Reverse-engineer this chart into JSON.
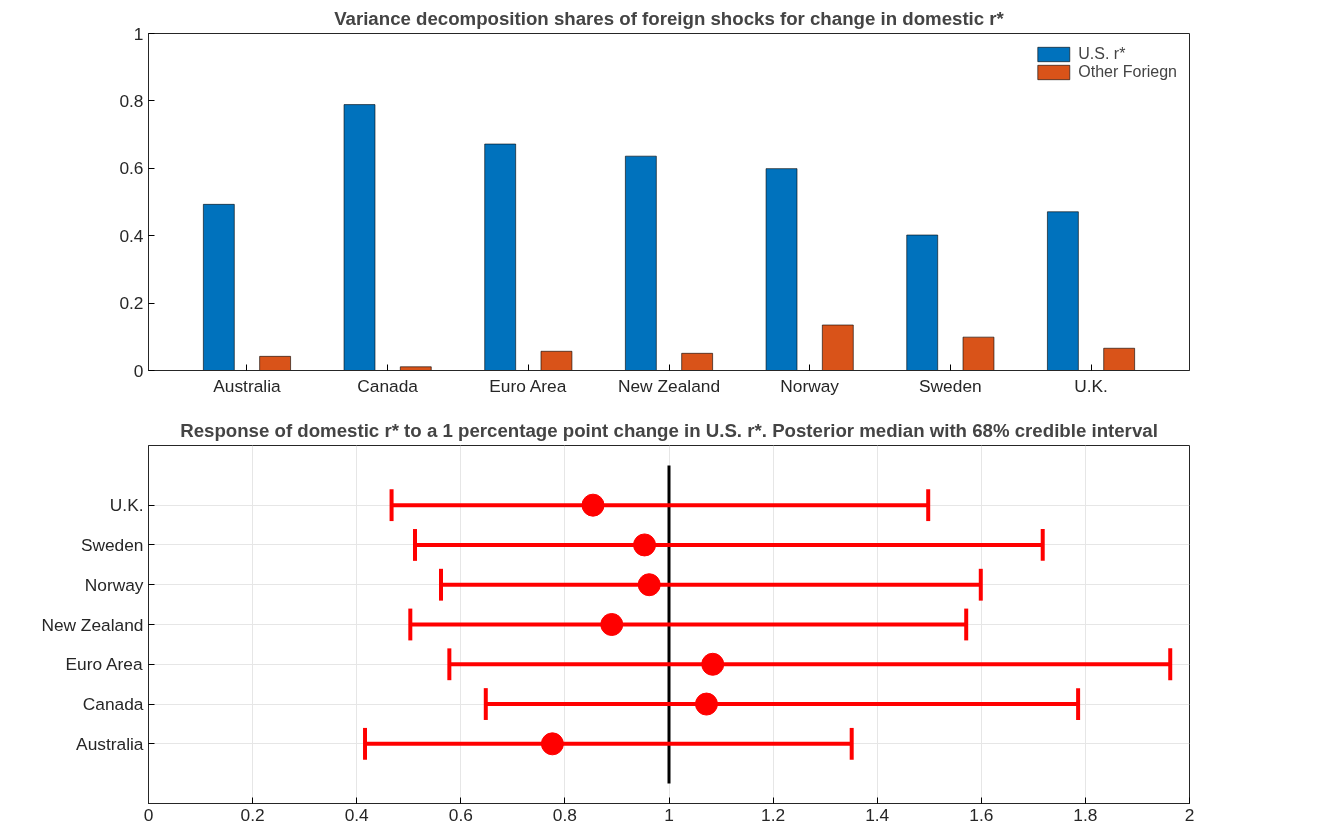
{
  "chart_data": [
    {
      "type": "bar",
      "title": "Variance decomposition shares of foreign shocks for change in domestic r*",
      "categories": [
        "Australia",
        "Canada",
        "Euro Area",
        "New Zealand",
        "Norway",
        "Sweden",
        "U.K."
      ],
      "series": [
        {
          "name": "U.S. r*",
          "color": "#0072bd",
          "values": [
            0.493,
            0.789,
            0.672,
            0.636,
            0.599,
            0.402,
            0.471
          ]
        },
        {
          "name": "Other Foriegn",
          "color": "#d95319",
          "values": [
            0.042,
            0.011,
            0.057,
            0.051,
            0.135,
            0.099,
            0.066
          ]
        }
      ],
      "ylim": [
        0,
        1
      ],
      "yticks": [
        0,
        0.2,
        0.4,
        0.6,
        0.8,
        1
      ],
      "grid": false,
      "legend": "top right"
    },
    {
      "type": "scatter",
      "orientation": "horizontal",
      "title": "Response of domestic r* to a 1 percentage point change in U.S. r*. Posterior median with 68% credible interval",
      "categories": [
        "U.K.",
        "Sweden",
        "Norway",
        "New Zealand",
        "Euro Area",
        "Canada",
        "Australia"
      ],
      "series": [
        {
          "color": "#ff0000",
          "values": [
            0.854,
            0.953,
            0.962,
            0.89,
            1.084,
            1.072,
            0.776
          ],
          "errors": [
            [
              0.467,
              1.498
            ],
            [
              0.512,
              1.718
            ],
            [
              0.562,
              1.599
            ],
            [
              0.503,
              1.571
            ],
            [
              0.578,
              1.963
            ],
            [
              0.648,
              1.786
            ],
            [
              0.416,
              1.351
            ]
          ]
        }
      ],
      "xlim": [
        0,
        2
      ],
      "xticks": [
        0,
        0.2,
        0.4,
        0.6,
        0.8,
        1,
        1.2,
        1.4,
        1.6,
        1.8,
        2
      ],
      "grid": true,
      "marker": "circle",
      "ref_lines": [
        {
          "axis": "x",
          "value": 1,
          "color": "#000000"
        }
      ]
    }
  ]
}
